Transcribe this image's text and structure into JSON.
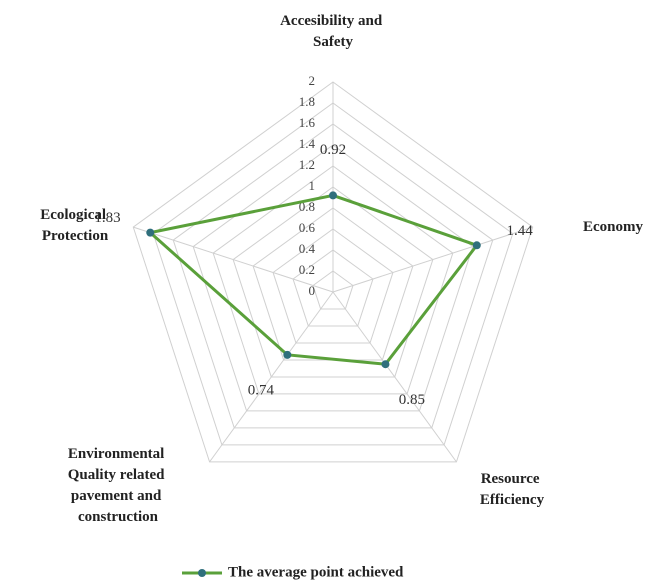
{
  "chart_data": {
    "type": "radar",
    "categories": [
      "Accesibility and Safety",
      "Economy",
      "Resource Efficiency",
      "Environmental Quality related pavement and construction",
      "Ecological Protection"
    ],
    "series": [
      {
        "name": "The average point achieved",
        "color": "#5aa03a",
        "marker_color": "#2f6f7c",
        "values": [
          0.92,
          1.44,
          0.85,
          0.74,
          1.83
        ]
      }
    ],
    "ylim": [
      0,
      2
    ],
    "yticks": [
      0,
      0.2,
      0.4,
      0.6,
      0.8,
      1,
      1.2,
      1.4,
      1.6,
      1.8,
      2
    ],
    "grid": true,
    "legend": "bottom"
  }
}
